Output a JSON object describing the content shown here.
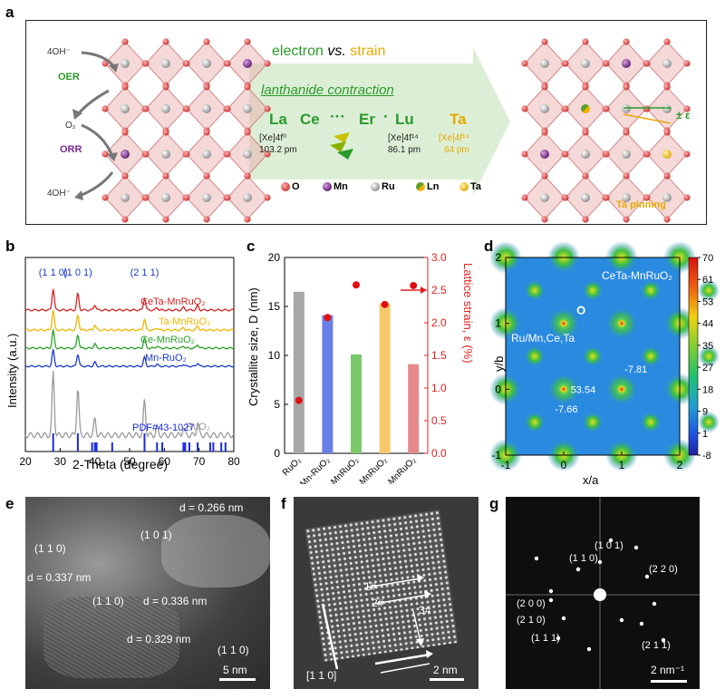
{
  "panel_labels": {
    "a": "a",
    "b": "b",
    "c": "c",
    "d": "d",
    "e": "e",
    "f": "f",
    "g": "g"
  },
  "panel_a": {
    "left_labels": {
      "oh_top": "4OH⁻",
      "oer": "OER",
      "o2": "O₂",
      "orr": "ORR",
      "oh_bottom": "4OH⁻"
    },
    "title_electron": "electron",
    "title_vs": "vs.",
    "title_strain": "strain",
    "subtitle": "lanthanide contraction",
    "series": {
      "la": "La",
      "ce": "Ce",
      "dots1": "···",
      "er": "Er",
      "dot2": "·",
      "lu": "Lu",
      "ta": "Ta"
    },
    "la_config": "[Xe]4f⁰",
    "la_radius": "103.2 pm",
    "lu_config": "[Xe]4f¹⁴",
    "lu_radius": "86.1 pm",
    "ta_config": "[Xe]4f¹⁴",
    "ta_radius": "64 pm",
    "legend": [
      {
        "label": "O",
        "color": "#e05050"
      },
      {
        "label": "Mn",
        "color": "#8e3a9a"
      },
      {
        "label": "Ru",
        "color": "#b0b0b0"
      },
      {
        "label": "Ln",
        "color": "#6aa830"
      },
      {
        "label": "Ta",
        "color": "#f2c21a"
      }
    ],
    "right_labels": {
      "pm_eps": "± ε",
      "ta_pinning": "Ta pinning"
    },
    "colors": {
      "green": "#2a9a2a",
      "orange": "#e8a800",
      "purple": "#7a2a9a",
      "arrow": "#dcefd6"
    }
  },
  "chart_data": [
    {
      "type": "line",
      "panel": "b",
      "xlabel": "2-Theta (degree)",
      "ylabel": "Intensity (a.u.)",
      "xlim": [
        20,
        80
      ],
      "xticks": [
        20,
        30,
        40,
        50,
        60,
        70,
        80
      ],
      "peak_labels": [
        "(1 1 0)",
        "(1 0 1)",
        "(2 1 1)"
      ],
      "peak_positions": [
        28.0,
        35.1,
        54.3
      ],
      "series": [
        {
          "name": "CeTa-MnRuO₂",
          "color": "#d62020"
        },
        {
          "name": "Ta-MnRuO₂",
          "color": "#f0b400"
        },
        {
          "name": "Ce-MnRuO₂",
          "color": "#2aa02a"
        },
        {
          "name": "Mn-RuO₂",
          "color": "#1a3ac8"
        },
        {
          "name": "RuO₂",
          "color": "#999999"
        }
      ],
      "reference": {
        "name": "PDF#43-1027",
        "color": "#1a2ae0",
        "peaks": [
          28.0,
          35.1,
          39.2,
          40.0,
          40.5,
          45.0,
          54.3,
          57.9,
          59.4,
          65.5,
          66.0,
          67.2,
          69.6,
          73.2,
          74.1,
          76.4,
          77.6
        ]
      }
    },
    {
      "type": "bar",
      "panel": "c",
      "categories": [
        "RuO₂",
        "Mn-RuO₂",
        "Ce-MnRuO₂",
        "Ta-MnRuO₂",
        "CeTa-MnRuO₂"
      ],
      "values": [
        16.5,
        14.1,
        10.1,
        15.3,
        9.1
      ],
      "colors": [
        "#a8a8a8",
        "#6a7fe6",
        "#7ac96a",
        "#f6c86a",
        "#e48a8a"
      ],
      "ylabel": "Crystallite size, D (nm)",
      "ylim": [
        0,
        20
      ],
      "yticks": [
        0,
        5,
        10,
        15,
        20
      ],
      "y2label": "Lattice strain, ε (%)",
      "y2lim": [
        0,
        3.0
      ],
      "y2ticks": [
        0.0,
        0.5,
        1.0,
        1.5,
        2.0,
        2.5,
        3.0
      ],
      "strain_values": [
        0.81,
        2.08,
        2.58,
        2.28,
        2.57
      ]
    },
    {
      "type": "heatmap",
      "panel": "d",
      "title": "CeTa-MnRuO₂",
      "xlabel": "x/a",
      "ylabel": "y/b",
      "xlim": [
        -1,
        2
      ],
      "ylim": [
        -1,
        2
      ],
      "xticks": [
        -1,
        0,
        1,
        2
      ],
      "yticks": [
        -1,
        0,
        1,
        2
      ],
      "colorbar_ticks": [
        70,
        61,
        53,
        44,
        35,
        27,
        18,
        9,
        1,
        -8
      ],
      "annotations": [
        "O",
        "Ru/Mn,Ce,Ta",
        "53.54",
        "-7.81",
        "-7.66"
      ]
    }
  ],
  "panel_e": {
    "labels": [
      "d = 0.266 nm",
      "(1 0 1)",
      "(1 1 0)",
      "d = 0.337 nm",
      "(1 1 0)",
      "d = 0.336 nm",
      "d = 0.329 nm",
      "(1 1 0)"
    ],
    "scale": "5 nm"
  },
  "panel_f": {
    "labels": [
      "1#",
      "2#",
      "3#",
      "[1 1 0]"
    ],
    "scale": "2 nm"
  },
  "panel_g": {
    "labels": [
      "(1 0 1)",
      "(1 1 0)",
      "(2 2 0)",
      "(2 0 0)",
      "(2 1 0)",
      "(1 1 1)",
      "(2 1 1)"
    ],
    "scale": "2 nm⁻¹"
  }
}
